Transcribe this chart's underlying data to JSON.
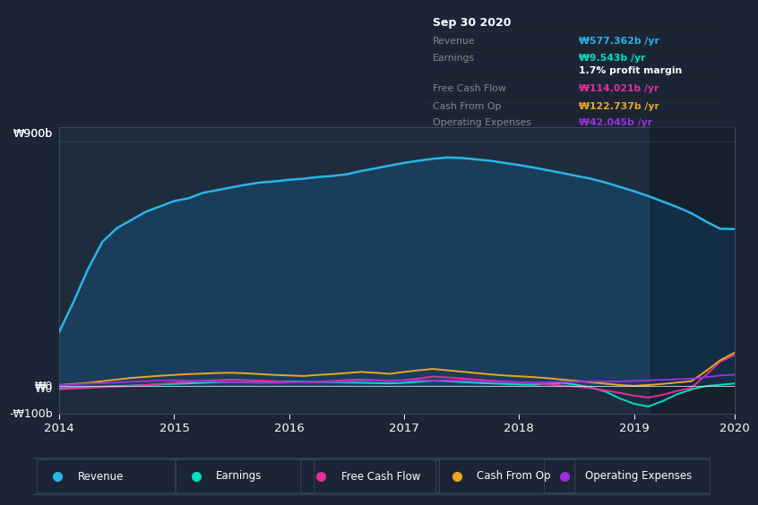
{
  "bg_color": "#1b2535",
  "plot_bg_color": "#1e2d3d",
  "highlight_bg": "#252f3e",
  "y_label_top": "₩900b",
  "y_label_zero": "₩0",
  "y_label_neg": "-₩100b",
  "x_ticks": [
    "2014",
    "2015",
    "2016",
    "2017",
    "2018",
    "2019",
    "2020"
  ],
  "ylim": [
    -100,
    950
  ],
  "revenue_color": "#29b5e8",
  "earnings_color": "#00e0c0",
  "fcf_color": "#e0309a",
  "cashfromop_color": "#e8a820",
  "opex_color": "#9a30e0",
  "revenue_fill": "#1a3d5c",
  "legend_items": [
    {
      "label": "Revenue",
      "color": "#29b5e8"
    },
    {
      "label": "Earnings",
      "color": "#00e0c0"
    },
    {
      "label": "Free Cash Flow",
      "color": "#e0309a"
    },
    {
      "label": "Cash From Op",
      "color": "#e8a820"
    },
    {
      "label": "Operating Expenses",
      "color": "#9a30e0"
    }
  ],
  "tooltip": {
    "title": "Sep 30 2020",
    "title_color": "#ffffff",
    "bg": "#0a0a0a",
    "border": "#333333",
    "rows": [
      {
        "label": "Revenue",
        "value": "₩577.362b /yr",
        "value_color": "#29b5e8",
        "separator": true
      },
      {
        "label": "Earnings",
        "value": "₩9.543b /yr",
        "value_color": "#00e0c0",
        "separator": false
      },
      {
        "label": "",
        "value": "1.7% profit margin",
        "value_color": "#ffffff",
        "separator": true
      },
      {
        "label": "Free Cash Flow",
        "value": "₩114.021b /yr",
        "value_color": "#e0309a",
        "separator": true
      },
      {
        "label": "Cash From Op",
        "value": "₩122.737b /yr",
        "value_color": "#e8a820",
        "separator": true
      },
      {
        "label": "Operating Expenses",
        "value": "₩42.045b /yr",
        "value_color": "#9a30e0",
        "separator": false
      }
    ]
  },
  "revenue_data": [
    200,
    310,
    430,
    530,
    580,
    610,
    640,
    660,
    680,
    690,
    710,
    720,
    730,
    740,
    748,
    752,
    758,
    762,
    768,
    772,
    778,
    790,
    800,
    810,
    820,
    828,
    835,
    840,
    838,
    833,
    828,
    820,
    812,
    803,
    793,
    783,
    772,
    762,
    748,
    732,
    716,
    698,
    678,
    658,
    635,
    605,
    578,
    577
  ],
  "earnings_data": [
    -8,
    -6,
    -4,
    -2,
    0,
    2,
    4,
    6,
    8,
    10,
    12,
    14,
    15,
    14,
    13,
    15,
    17,
    16,
    15,
    14,
    13,
    12,
    11,
    10,
    12,
    16,
    20,
    18,
    15,
    12,
    10,
    8,
    6,
    5,
    8,
    12,
    5,
    -5,
    -20,
    -45,
    -65,
    -75,
    -55,
    -30,
    -12,
    0,
    5,
    9.5
  ],
  "fcf_data": [
    -12,
    -9,
    -7,
    -4,
    -2,
    1,
    4,
    8,
    12,
    16,
    20,
    22,
    24,
    22,
    20,
    18,
    15,
    13,
    16,
    19,
    22,
    24,
    22,
    18,
    22,
    28,
    35,
    32,
    28,
    24,
    20,
    17,
    14,
    10,
    6,
    2,
    -2,
    -8,
    -16,
    -25,
    -35,
    -42,
    -32,
    -18,
    -6,
    40,
    90,
    114
  ],
  "cashfromop_data": [
    4,
    8,
    12,
    18,
    24,
    30,
    34,
    38,
    41,
    44,
    46,
    48,
    49,
    47,
    44,
    41,
    39,
    37,
    41,
    44,
    48,
    52,
    49,
    45,
    52,
    58,
    63,
    58,
    53,
    48,
    43,
    39,
    36,
    33,
    29,
    24,
    19,
    14,
    9,
    4,
    1,
    4,
    8,
    13,
    18,
    55,
    95,
    122.7
  ],
  "opex_data": [
    4,
    6,
    9,
    11,
    13,
    16,
    18,
    20,
    21,
    20,
    19,
    17,
    14,
    13,
    12,
    12,
    13,
    14,
    15,
    16,
    17,
    19,
    21,
    21,
    21,
    21,
    21,
    21,
    20,
    18,
    16,
    15,
    14,
    13,
    14,
    15,
    16,
    17,
    17,
    17,
    19,
    21,
    23,
    25,
    27,
    33,
    39,
    42
  ]
}
